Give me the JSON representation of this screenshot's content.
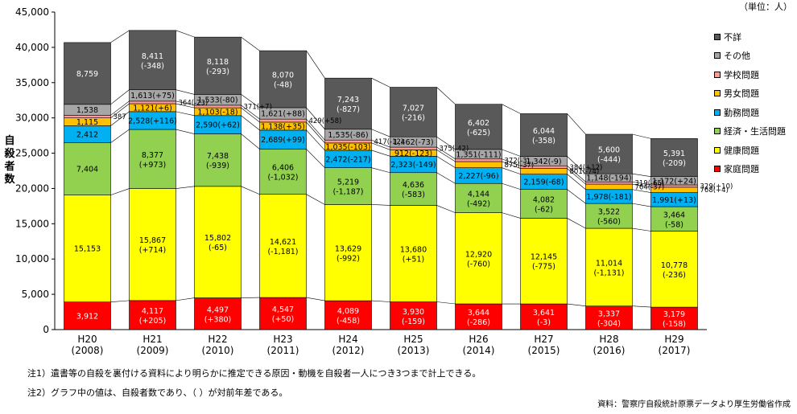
{
  "unit_label": "（単位：人）",
  "y_axis_label": "自殺者数",
  "notes": [
    "注1）遺書等の自殺を裏付ける資料により明らかに推定できる原因・動機を自殺者一人につき3つまで計上できる。",
    "注2）グラフ中の値は、自殺者数であり、（ ）が対前年差である。"
  ],
  "source": "資料：警察庁自殺統計原票データより厚生労働省作成",
  "chart_data": {
    "type": "bar",
    "stacked": true,
    "ylim": [
      0,
      45000
    ],
    "yticks": [
      "0",
      "5,000",
      "10,000",
      "15,000",
      "20,000",
      "25,000",
      "30,000",
      "35,000",
      "40,000",
      "45,000"
    ],
    "categories": [
      {
        "era": "H20",
        "year": "(2008)"
      },
      {
        "era": "H21",
        "year": "(2009)"
      },
      {
        "era": "H22",
        "year": "(2010)"
      },
      {
        "era": "H23",
        "year": "(2011)"
      },
      {
        "era": "H24",
        "year": "(2012)"
      },
      {
        "era": "H25",
        "year": "(2013)"
      },
      {
        "era": "H26",
        "year": "(2014)"
      },
      {
        "era": "H27",
        "year": "(2015)"
      },
      {
        "era": "H28",
        "year": "(2016)"
      },
      {
        "era": "H29",
        "year": "(2017)"
      }
    ],
    "series": [
      {
        "name": "家庭問題",
        "color": "#ff0000",
        "values": [
          3912,
          4117,
          4497,
          4547,
          4089,
          3930,
          3644,
          3641,
          3337,
          3179
        ],
        "labels": [
          "3,912",
          "4,117",
          "4,497",
          "4,547",
          "4,089",
          "3,930",
          "3,644",
          "3,641",
          "3,337",
          "3,179"
        ],
        "diffs": [
          "",
          "(+205)",
          "(+380)",
          "(+50)",
          "(-458)",
          "(-159)",
          "(-286)",
          "(-3)",
          "(-304)",
          "(-158)"
        ]
      },
      {
        "name": "健康問題",
        "color": "#ffff00",
        "values": [
          15153,
          15867,
          15802,
          14621,
          13629,
          13680,
          12920,
          12145,
          11014,
          10778
        ],
        "labels": [
          "15,153",
          "15,867",
          "15,802",
          "14,621",
          "13,629",
          "13,680",
          "12,920",
          "12,145",
          "11,014",
          "10,778"
        ],
        "diffs": [
          "",
          "(+714)",
          "(-65)",
          "(-1,181)",
          "(-992)",
          "(+51)",
          "(-760)",
          "(-775)",
          "(-1,131)",
          "(-236)"
        ]
      },
      {
        "name": "経済・生活問題",
        "color": "#92d050",
        "values": [
          7404,
          8377,
          7438,
          6406,
          5219,
          4636,
          4144,
          4082,
          3522,
          3464
        ],
        "labels": [
          "7,404",
          "8,377",
          "7,438",
          "6,406",
          "5,219",
          "4,636",
          "4,144",
          "4,082",
          "3,522",
          "3,464"
        ],
        "diffs": [
          "",
          "(+973)",
          "(-939)",
          "(-1,032)",
          "(-1,187)",
          "(-583)",
          "(-492)",
          "(-62)",
          "(-560)",
          "(-58)"
        ]
      },
      {
        "name": "勤務問題",
        "color": "#00b0f0",
        "values": [
          2412,
          2528,
          2590,
          2689,
          2472,
          2323,
          2227,
          2159,
          1978,
          1991
        ],
        "labels": [
          "2,412",
          "2,528",
          "2,590",
          "2,689",
          "2,472",
          "2,323",
          "2,227",
          "2,159",
          "1,978",
          "1,991"
        ],
        "diffs": [
          "",
          "(+116)",
          "(+62)",
          "(+99)",
          "(-217)",
          "(-149)",
          "(-96)",
          "(-68)",
          "(-181)",
          "(+13)"
        ]
      },
      {
        "name": "男女問題",
        "color": "#ffc000",
        "values": [
          1115,
          1121,
          1103,
          1138,
          1035,
          912,
          875,
          801,
          764,
          768
        ],
        "labels": [
          "1,115",
          "1,121",
          "1,103",
          "1,138",
          "1,035",
          "912",
          "875",
          "801",
          "764",
          "768"
        ],
        "diffs": [
          "",
          "(+6)",
          "(-18)",
          "(+35)",
          "(-103)",
          "(-123)",
          "(-37)",
          "(-74)",
          "(-37)",
          "(+4)"
        ]
      },
      {
        "name": "学校問題",
        "color": "#ff9999",
        "values": [
          387,
          364,
          371,
          429,
          417,
          375,
          372,
          384,
          319,
          329
        ],
        "labels": [
          "387",
          "364",
          "371",
          "429",
          "417",
          "375",
          "372",
          "384",
          "319",
          "329"
        ],
        "diffs": [
          "",
          "(-23)",
          "(+7)",
          "(+58)",
          "(-12)",
          "(-42)",
          "(-3)",
          "(+12)",
          "(-65)",
          "(+10)"
        ]
      },
      {
        "name": "その他",
        "color": "#a6a6a6",
        "values": [
          1538,
          1613,
          1533,
          1621,
          1535,
          1462,
          1351,
          1342,
          1148,
          1172
        ],
        "labels": [
          "1,538",
          "1,613",
          "1,533",
          "1,621",
          "1,535",
          "1,462",
          "1,351",
          "1,342",
          "1,148",
          "1,172"
        ],
        "diffs": [
          "",
          "(+75)",
          "(-80)",
          "(+88)",
          "(-86)",
          "(-73)",
          "(-111)",
          "(-9)",
          "(-194)",
          "(+24)"
        ]
      },
      {
        "name": "不詳",
        "color": "#595959",
        "values": [
          8759,
          8411,
          8118,
          8070,
          7243,
          7027,
          6402,
          6044,
          5600,
          5391
        ],
        "labels": [
          "8,759",
          "8,411",
          "8,118",
          "8,070",
          "7,243",
          "7,027",
          "6,402",
          "6,044",
          "5,600",
          "5,391"
        ],
        "diffs": [
          "",
          "(-348)",
          "(-293)",
          "(-48)",
          "(-827)",
          "(-216)",
          "(-625)",
          "(-358)",
          "(-444)",
          "(-209)"
        ]
      }
    ]
  }
}
